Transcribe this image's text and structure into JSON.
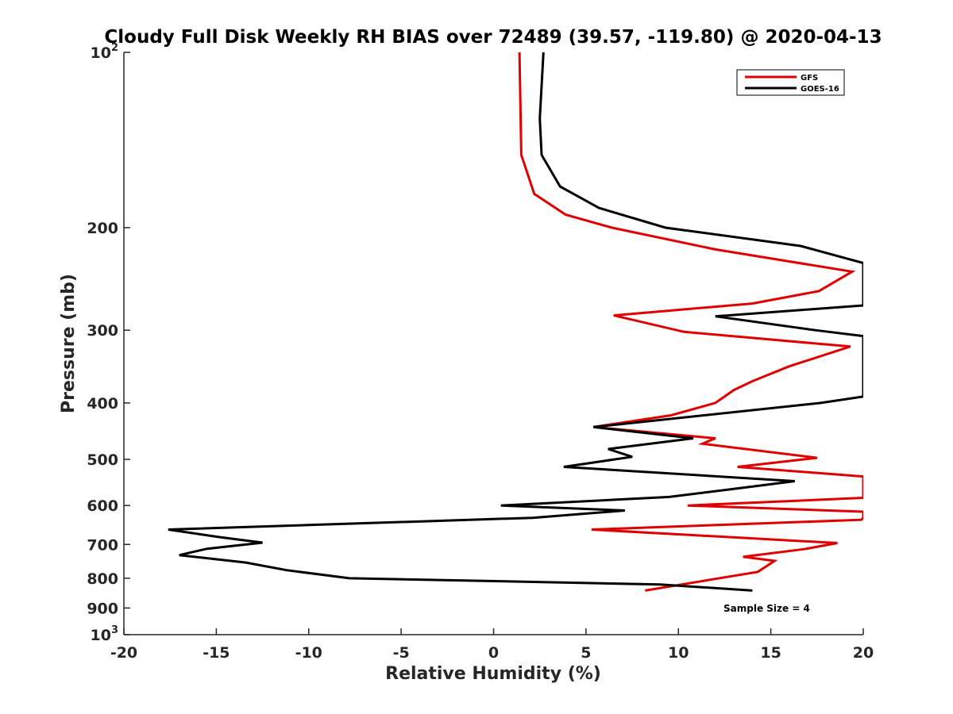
{
  "chart_data": {
    "type": "line",
    "title": "Cloudy Full Disk Weekly RH BIAS over 72489 (39.57, -119.80) @ 2020-04-13",
    "xlabel": "Relative Humidity (%)",
    "ylabel": "Pressure (mb)",
    "xlim": [
      -20,
      20
    ],
    "ylim": [
      100,
      1000
    ],
    "y_scale": "log",
    "y_reversed": true,
    "grid": false,
    "legend_position": "top-right",
    "xticks": [
      -20,
      -15,
      -10,
      -5,
      0,
      5,
      10,
      15,
      20
    ],
    "xtick_labels": [
      "-20",
      "-15",
      "-10",
      "-5",
      "0",
      "5",
      "10",
      "15",
      "20"
    ],
    "yticks": [
      100,
      200,
      300,
      400,
      500,
      600,
      700,
      800,
      900,
      1000
    ],
    "ytick_labels": [
      {
        "base": "10",
        "exp": "2"
      },
      {
        "base": "200",
        "exp": ""
      },
      {
        "base": "300",
        "exp": ""
      },
      {
        "base": "400",
        "exp": ""
      },
      {
        "base": "500",
        "exp": ""
      },
      {
        "base": "600",
        "exp": ""
      },
      {
        "base": "700",
        "exp": ""
      },
      {
        "base": "800",
        "exp": ""
      },
      {
        "base": "900",
        "exp": ""
      },
      {
        "base": "10",
        "exp": "3"
      }
    ],
    "annotation": "Sample Size = 4",
    "series": [
      {
        "name": "GFS",
        "color": "#e00000",
        "points": [
          [
            1.4,
            100
          ],
          [
            1.5,
            150
          ],
          [
            2.2,
            175
          ],
          [
            3.9,
            190
          ],
          [
            6.4,
            200
          ],
          [
            12.0,
            218
          ],
          [
            19.4,
            238
          ],
          [
            17.6,
            257
          ],
          [
            14.0,
            270
          ],
          [
            6.5,
            283
          ],
          [
            10.3,
            302
          ],
          [
            19.3,
            320
          ],
          [
            16.0,
            346
          ],
          [
            14.0,
            367
          ],
          [
            13.0,
            380
          ],
          [
            12.0,
            400
          ],
          [
            9.6,
            420
          ],
          [
            5.4,
            440
          ],
          [
            12.0,
            460
          ],
          [
            11.3,
            470
          ],
          [
            17.5,
            497
          ],
          [
            13.2,
            515
          ],
          [
            20.0,
            535
          ],
          [
            20.0,
            582
          ],
          [
            10.5,
            600
          ],
          [
            20.0,
            615
          ],
          [
            20.0,
            630
          ],
          [
            19.9,
            635
          ],
          [
            5.3,
            660
          ],
          [
            18.6,
            696
          ],
          [
            16.8,
            713
          ],
          [
            13.5,
            735
          ],
          [
            15.2,
            747
          ],
          [
            14.3,
            780
          ],
          [
            8.2,
            840
          ]
        ]
      },
      {
        "name": "GOES-16",
        "color": "#000000",
        "points": [
          [
            2.7,
            100
          ],
          [
            2.5,
            130
          ],
          [
            2.6,
            150
          ],
          [
            3.6,
            170
          ],
          [
            5.7,
            185
          ],
          [
            9.3,
            200
          ],
          [
            16.6,
            215
          ],
          [
            20.0,
            230
          ],
          [
            20.0,
            272
          ],
          [
            12.0,
            284
          ],
          [
            17.4,
            300
          ],
          [
            20.0,
            307
          ],
          [
            20.0,
            390
          ],
          [
            17.7,
            400
          ],
          [
            5.4,
            440
          ],
          [
            10.8,
            460
          ],
          [
            6.2,
            480
          ],
          [
            7.5,
            495
          ],
          [
            3.8,
            515
          ],
          [
            16.3,
            545
          ],
          [
            13.0,
            562
          ],
          [
            9.5,
            580
          ],
          [
            0.4,
            600
          ],
          [
            7.1,
            612
          ],
          [
            2.1,
            630
          ],
          [
            -17.6,
            660
          ],
          [
            -14.8,
            680
          ],
          [
            -12.5,
            695
          ],
          [
            -15.5,
            712
          ],
          [
            -17.0,
            730
          ],
          [
            -13.4,
            752
          ],
          [
            -11.2,
            775
          ],
          [
            -7.8,
            800
          ],
          [
            9.0,
            820
          ],
          [
            14.0,
            840
          ]
        ]
      }
    ]
  }
}
